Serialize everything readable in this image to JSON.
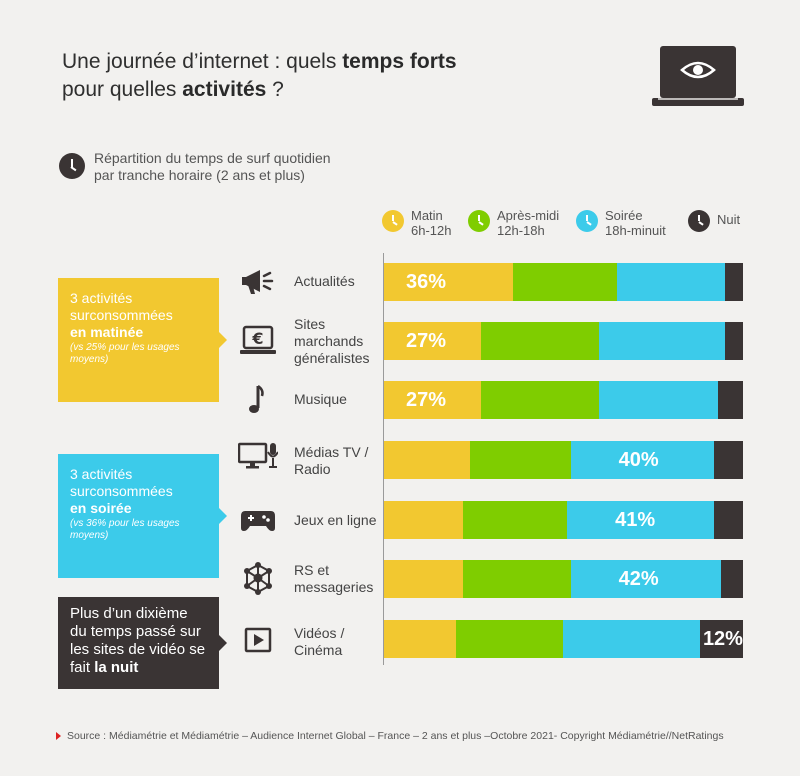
{
  "header": {
    "title_part1": "Une journée d’internet : quels ",
    "title_bold1": "temps forts",
    "title_part2": "pour quelles ",
    "title_bold2": "activités",
    "title_part3": " ?",
    "subtitle_line1": "Répartition du temps de surf quotidien",
    "subtitle_line2": "par tranche horaire (2 ans et plus)"
  },
  "colors": {
    "matin": "#f2c830",
    "apres_midi": "#7fcd00",
    "soiree": "#3ccbea",
    "nuit": "#3a3434"
  },
  "callouts": {
    "matinee": {
      "line1": "3 activités",
      "line2": "surconsommées",
      "bold": "en matinée",
      "note": "(vs 25% pour les usages moyens)"
    },
    "soiree": {
      "line1": "3 activités",
      "line2": "surconsommées",
      "bold": "en soirée",
      "note": "(vs 36% pour les usages moyens)"
    },
    "nuit": {
      "text": "Plus d’un dixième du temps passé sur les sites de vidéo se fait ",
      "bold": "la nuit"
    }
  },
  "row_icons": [
    "megaphone-icon",
    "laptop-euro-icon",
    "music-note-icon",
    "tv-microphone-icon",
    "gamepad-icon",
    "network-icon",
    "video-play-icon"
  ],
  "chart_data": {
    "type": "bar",
    "orientation": "horizontal",
    "stacked": true,
    "percent_stacked": true,
    "legend_position": "top-right",
    "categories": [
      "Actualités",
      "Sites marchands généralistes",
      "Musique",
      "Médias TV / Radio",
      "Jeux en ligne",
      "RS et messageries",
      "Vidéos / Cinéma"
    ],
    "series": [
      {
        "name": "Matin",
        "sub": "6h-12h",
        "values": [
          36,
          27,
          27,
          24,
          22,
          22,
          20
        ]
      },
      {
        "name": "Après-midi",
        "sub": "12h-18h",
        "values": [
          29,
          33,
          33,
          28,
          29,
          30,
          30
        ]
      },
      {
        "name": "Soirée",
        "sub": "18h-minuit",
        "values": [
          30,
          35,
          33,
          40,
          41,
          42,
          38
        ]
      },
      {
        "name": "Nuit",
        "sub": "",
        "values": [
          5,
          5,
          7,
          8,
          8,
          6,
          12
        ]
      }
    ],
    "data_labels": [
      {
        "row": 0,
        "series": 0,
        "text": "36%"
      },
      {
        "row": 1,
        "series": 0,
        "text": "27%"
      },
      {
        "row": 2,
        "series": 0,
        "text": "27%"
      },
      {
        "row": 3,
        "series": 2,
        "text": "40%"
      },
      {
        "row": 4,
        "series": 2,
        "text": "41%"
      },
      {
        "row": 5,
        "series": 2,
        "text": "42%"
      },
      {
        "row": 6,
        "series": 3,
        "text": "12%"
      }
    ],
    "xlim": [
      0,
      100
    ]
  },
  "source": {
    "text": "Source : Médiamétrie et Médiamétrie – Audience Internet Global – France – 2 ans et plus – ",
    "date": "Octobre 2021",
    "copyright": " - Copyright Médiamétrie//NetRatings"
  }
}
